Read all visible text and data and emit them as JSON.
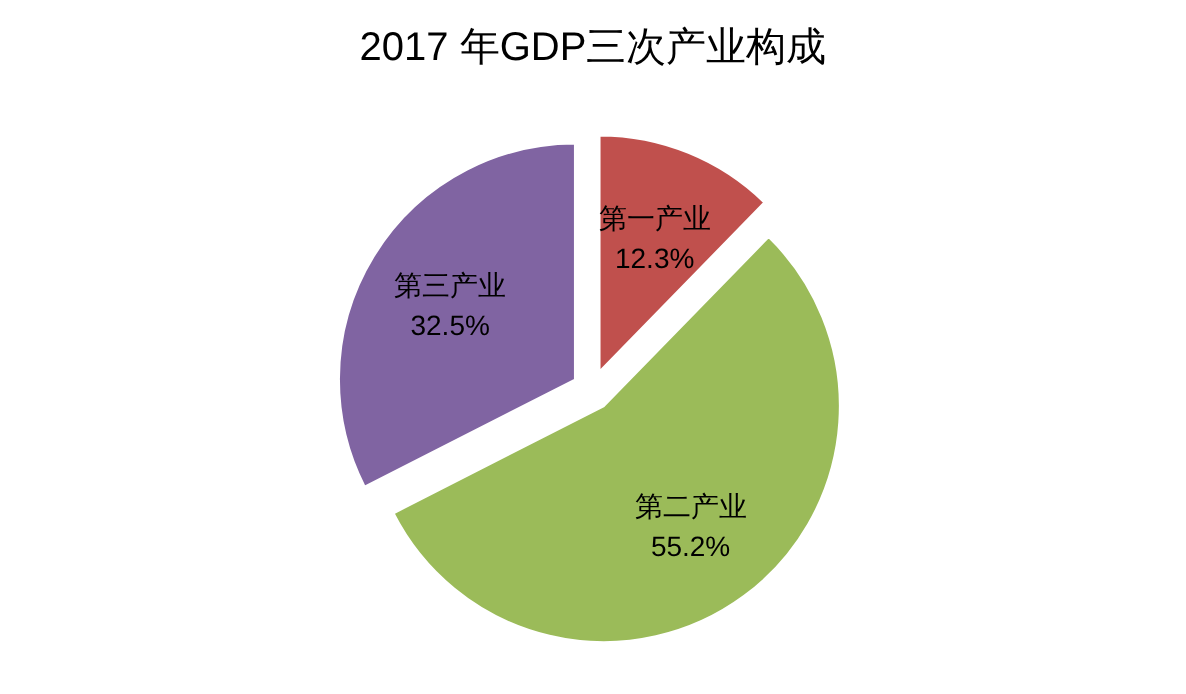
{
  "chart_data": {
    "type": "pie",
    "title": "2017 年GDP三次产业构成",
    "categories": [
      "第一产业",
      "第二产业",
      "第三产业"
    ],
    "values": [
      12.3,
      55.2,
      32.5
    ],
    "colors": [
      "#c0504d",
      "#9bbb59",
      "#8064a2"
    ],
    "value_labels": [
      "12.3%",
      "55.2%",
      "32.5%"
    ]
  }
}
